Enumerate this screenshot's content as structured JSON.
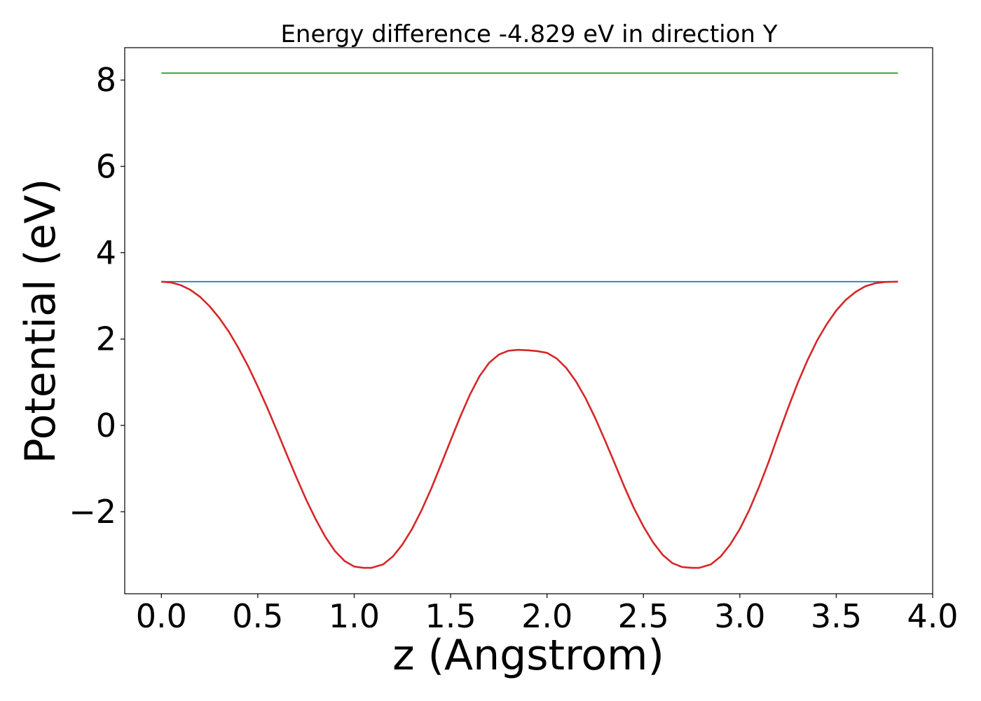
{
  "chart_data": {
    "type": "line",
    "title": "Energy difference -4.829 eV in direction Y",
    "xlabel": "z (Angstrom)",
    "ylabel": "Potential (eV)",
    "xlim": [
      -0.19,
      4.0
    ],
    "ylim": [
      -3.9,
      8.75
    ],
    "xticks": [
      {
        "value": 0.0,
        "label": "0.0"
      },
      {
        "value": 0.5,
        "label": "0.5"
      },
      {
        "value": 1.0,
        "label": "1.0"
      },
      {
        "value": 1.5,
        "label": "1.5"
      },
      {
        "value": 2.0,
        "label": "2.0"
      },
      {
        "value": 2.5,
        "label": "2.5"
      },
      {
        "value": 3.0,
        "label": "3.0"
      },
      {
        "value": 3.5,
        "label": "3.5"
      },
      {
        "value": 4.0,
        "label": "4.0"
      }
    ],
    "yticks": [
      {
        "value": -2,
        "label": "−2"
      },
      {
        "value": 0,
        "label": "0"
      },
      {
        "value": 2,
        "label": "2"
      },
      {
        "value": 4,
        "label": "4"
      },
      {
        "value": 6,
        "label": "6"
      },
      {
        "value": 8,
        "label": "8"
      }
    ],
    "grid": false,
    "legend": "none",
    "series": [
      {
        "color": "#2ca02c",
        "x": [
          0.0,
          3.82
        ],
        "y": [
          8.16,
          8.16
        ]
      },
      {
        "color": "#1f77b4",
        "x": [
          0.0,
          3.82
        ],
        "y": [
          3.33,
          3.33
        ]
      },
      {
        "color": "#d62728",
        "x": [
          0.0,
          0.05,
          0.1,
          0.15,
          0.2,
          0.25,
          0.3,
          0.35,
          0.4,
          0.45,
          0.5,
          0.55,
          0.6,
          0.65,
          0.7,
          0.75,
          0.8,
          0.85,
          0.9,
          0.95,
          1.0,
          1.05,
          1.09,
          1.15,
          1.2,
          1.25,
          1.3,
          1.35,
          1.4,
          1.45,
          1.5,
          1.55,
          1.6,
          1.65,
          1.7,
          1.75,
          1.8,
          1.85,
          1.9,
          1.95,
          2.0,
          2.05,
          2.1,
          2.15,
          2.2,
          2.25,
          2.3,
          2.35,
          2.4,
          2.45,
          2.5,
          2.55,
          2.6,
          2.65,
          2.7,
          2.75,
          2.79,
          2.85,
          2.9,
          2.95,
          3.0,
          3.05,
          3.1,
          3.15,
          3.2,
          3.25,
          3.3,
          3.35,
          3.4,
          3.45,
          3.5,
          3.55,
          3.6,
          3.65,
          3.7,
          3.75,
          3.82
        ],
        "y": [
          3.33,
          3.31,
          3.25,
          3.14,
          2.98,
          2.76,
          2.49,
          2.17,
          1.79,
          1.37,
          0.9,
          0.4,
          -0.13,
          -0.67,
          -1.2,
          -1.71,
          -2.17,
          -2.58,
          -2.91,
          -3.14,
          -3.27,
          -3.3,
          -3.3,
          -3.22,
          -3.04,
          -2.76,
          -2.4,
          -1.96,
          -1.46,
          -0.91,
          -0.35,
          0.2,
          0.71,
          1.14,
          1.45,
          1.64,
          1.73,
          1.75,
          1.74,
          1.72,
          1.68,
          1.55,
          1.33,
          1.02,
          0.63,
          0.17,
          -0.34,
          -0.87,
          -1.41,
          -1.91,
          -2.34,
          -2.71,
          -3.0,
          -3.19,
          -3.28,
          -3.3,
          -3.3,
          -3.22,
          -3.04,
          -2.76,
          -2.4,
          -1.95,
          -1.42,
          -0.84,
          -0.21,
          0.4,
          0.98,
          1.5,
          1.96,
          2.34,
          2.66,
          2.91,
          3.09,
          3.22,
          3.29,
          3.32,
          3.33
        ]
      }
    ]
  }
}
